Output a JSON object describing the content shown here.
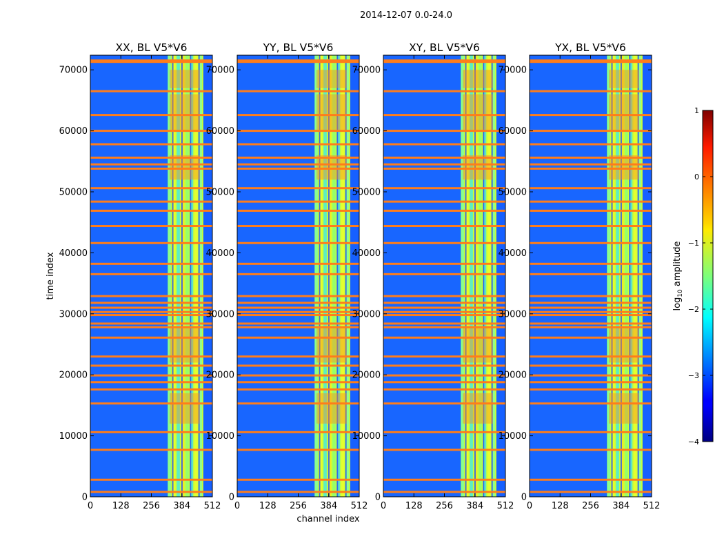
{
  "chart_data": {
    "type": "heatmap",
    "suptitle": "2014-12-07 0.0-24.0",
    "xlabel": "channel index",
    "ylabel": "time index",
    "xlim": [
      0,
      512
    ],
    "ylim": [
      0,
      72400
    ],
    "xticks": [
      0,
      128,
      256,
      384,
      512
    ],
    "yticks": [
      0,
      10000,
      20000,
      30000,
      40000,
      50000,
      60000,
      70000
    ],
    "panels": [
      {
        "title": "XX, BL V5*V6"
      },
      {
        "title": "YY, BL V5*V6"
      },
      {
        "title": "XY, BL V5*V6"
      },
      {
        "title": "YX, BL V5*V6"
      }
    ],
    "colorbar": {
      "label": "log10 amplitude",
      "label_base": "log",
      "label_sub": "10",
      "label_rest": " amplitude",
      "range": [
        -4,
        1
      ],
      "ticks": [
        1,
        0,
        -1,
        -2,
        -3,
        -4
      ],
      "tick_labels": [
        "1",
        "0",
        "−1",
        "−2",
        "−3",
        "−4"
      ],
      "colormap": "jet"
    },
    "bright_channel_band": [
      325,
      474
    ],
    "flagged_time_rows": [
      800,
      2800,
      7700,
      10600,
      15300,
      17600,
      18800,
      19900,
      21500,
      23000,
      26100,
      27800,
      28400,
      29800,
      30300,
      31000,
      31800,
      32900,
      36500,
      38200,
      41600,
      44400,
      46900,
      48400,
      50600,
      53800,
      54500,
      55600,
      57800,
      60000,
      62600,
      66500,
      71500
    ]
  }
}
